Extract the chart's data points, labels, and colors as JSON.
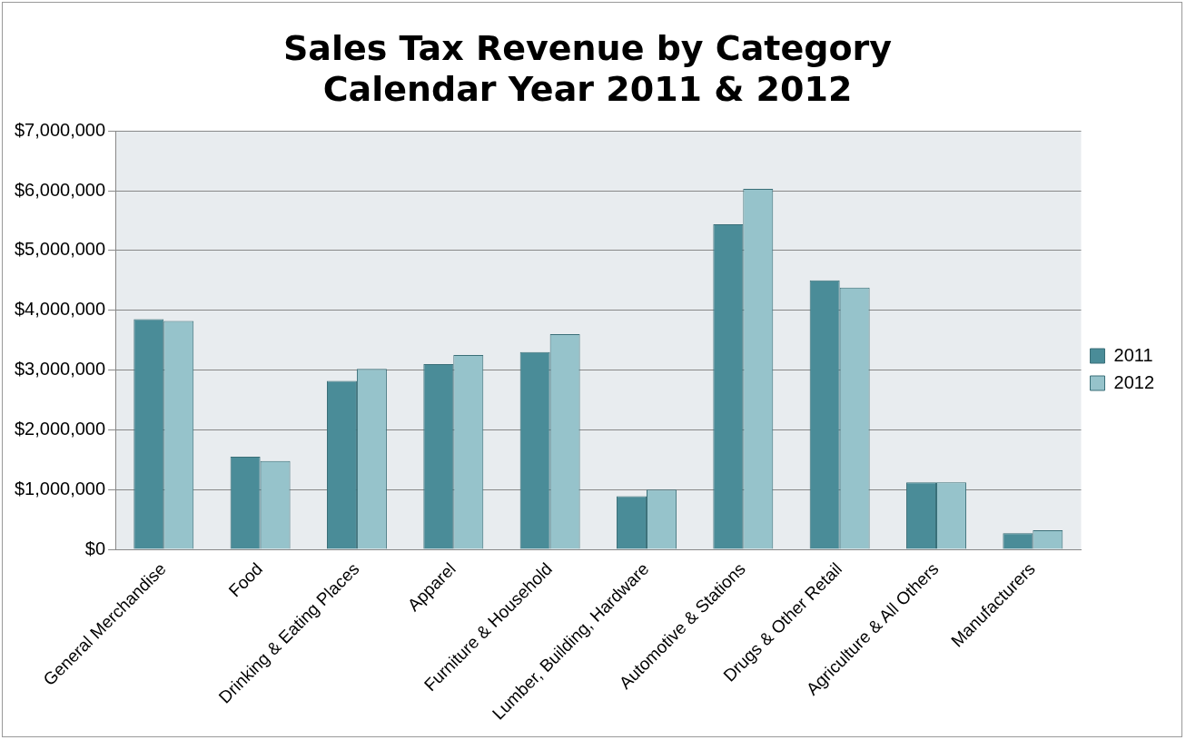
{
  "chart_data": {
    "type": "bar",
    "title": "Sales Tax Revenue by Category\nCalendar Year 2011 & 2012",
    "categories": [
      "General Merchandise",
      "Food",
      "Drinking & Eating Places",
      "Apparel",
      "Furniture & Household",
      "Lumber, Building, Hardware",
      "Automotive & Stations",
      "Drugs & Other Retail",
      "Agriculture & All Others",
      "Manufacturers"
    ],
    "series": [
      {
        "name": "2011",
        "color": "#4a8c98",
        "values": [
          3850000,
          1550000,
          2820000,
          3100000,
          3300000,
          890000,
          5440000,
          4500000,
          1120000,
          270000
        ]
      },
      {
        "name": "2012",
        "color": "#96c3cb",
        "values": [
          3820000,
          1480000,
          3020000,
          3250000,
          3600000,
          1000000,
          6030000,
          4380000,
          1120000,
          320000
        ]
      }
    ],
    "ylim": [
      0,
      7000000
    ],
    "yticks": [
      {
        "value": 0,
        "label": "$0"
      },
      {
        "value": 1000000,
        "label": "$1,000,000"
      },
      {
        "value": 2000000,
        "label": "$2,000,000"
      },
      {
        "value": 3000000,
        "label": "$3,000,000"
      },
      {
        "value": 4000000,
        "label": "$4,000,000"
      },
      {
        "value": 5000000,
        "label": "$5,000,000"
      },
      {
        "value": 6000000,
        "label": "$6,000,000"
      },
      {
        "value": 7000000,
        "label": "$7,000,000"
      }
    ],
    "grid": "y",
    "legend": "right"
  }
}
